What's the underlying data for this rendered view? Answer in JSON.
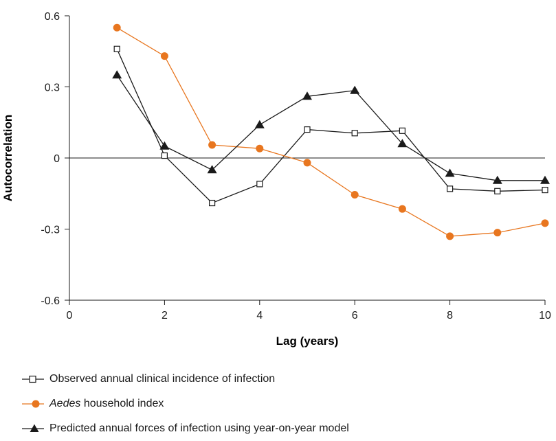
{
  "chart_data": {
    "type": "line",
    "xlabel": "Lag (years)",
    "ylabel": "Autocorrelation",
    "xlim": [
      0,
      10
    ],
    "ylim": [
      -0.6,
      0.6
    ],
    "xticks": [
      "0",
      "2",
      "4",
      "6",
      "8",
      "10"
    ],
    "yticks": [
      "0.6",
      "0.3",
      "0",
      "-0.3",
      "-0.6"
    ],
    "grid": false,
    "legend_position": "bottom",
    "series": [
      {
        "name": "Observed annual clinical incidence of infection",
        "marker": "open-square",
        "color": "#1a1a1a",
        "x": [
          1,
          2,
          3,
          4,
          5,
          6,
          7,
          8,
          9,
          10
        ],
        "y": [
          0.46,
          0.01,
          -0.19,
          -0.11,
          0.12,
          0.105,
          0.115,
          -0.13,
          -0.14,
          -0.135
        ]
      },
      {
        "name_italic": "Aedes",
        "name_rest": " household index",
        "marker": "filled-circle",
        "color": "#e8761f",
        "x": [
          1,
          2,
          3,
          4,
          5,
          6,
          7,
          8,
          9,
          10
        ],
        "y": [
          0.55,
          0.43,
          0.055,
          0.04,
          -0.02,
          -0.155,
          -0.215,
          -0.33,
          -0.315,
          -0.275
        ]
      },
      {
        "name": "Predicted annual forces of infection using year-on-year model",
        "marker": "filled-triangle",
        "color": "#1a1a1a",
        "x": [
          1,
          2,
          3,
          4,
          5,
          6,
          7,
          8,
          9,
          10
        ],
        "y": [
          0.35,
          0.05,
          -0.05,
          0.14,
          0.26,
          0.285,
          0.06,
          -0.065,
          -0.095,
          -0.095
        ]
      }
    ]
  }
}
